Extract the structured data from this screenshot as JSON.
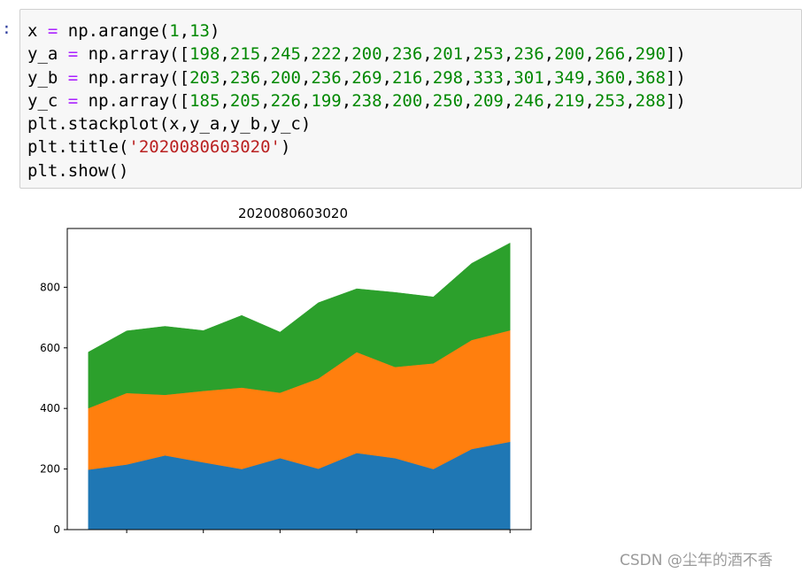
{
  "notebook": {
    "prompt": ":",
    "code_lines": [
      [
        {
          "t": "x "
        },
        {
          "t": "=",
          "c": "o"
        },
        {
          "t": " np.arange("
        },
        {
          "t": "1",
          "c": "n"
        },
        {
          "t": ","
        },
        {
          "t": "13",
          "c": "n"
        },
        {
          "t": ")"
        }
      ],
      [
        {
          "t": "y_a "
        },
        {
          "t": "=",
          "c": "o"
        },
        {
          "t": " np.array(["
        },
        {
          "t": "198",
          "c": "n"
        },
        {
          "t": ","
        },
        {
          "t": "215",
          "c": "n"
        },
        {
          "t": ","
        },
        {
          "t": "245",
          "c": "n"
        },
        {
          "t": ","
        },
        {
          "t": "222",
          "c": "n"
        },
        {
          "t": ","
        },
        {
          "t": "200",
          "c": "n"
        },
        {
          "t": ","
        },
        {
          "t": "236",
          "c": "n"
        },
        {
          "t": ","
        },
        {
          "t": "201",
          "c": "n"
        },
        {
          "t": ","
        },
        {
          "t": "253",
          "c": "n"
        },
        {
          "t": ","
        },
        {
          "t": "236",
          "c": "n"
        },
        {
          "t": ","
        },
        {
          "t": "200",
          "c": "n"
        },
        {
          "t": ","
        },
        {
          "t": "266",
          "c": "n"
        },
        {
          "t": ","
        },
        {
          "t": "290",
          "c": "n"
        },
        {
          "t": "])"
        }
      ],
      [
        {
          "t": "y_b "
        },
        {
          "t": "=",
          "c": "o"
        },
        {
          "t": " np.array(["
        },
        {
          "t": "203",
          "c": "n"
        },
        {
          "t": ","
        },
        {
          "t": "236",
          "c": "n"
        },
        {
          "t": ","
        },
        {
          "t": "200",
          "c": "n"
        },
        {
          "t": ","
        },
        {
          "t": "236",
          "c": "n"
        },
        {
          "t": ","
        },
        {
          "t": "269",
          "c": "n"
        },
        {
          "t": ","
        },
        {
          "t": "216",
          "c": "n"
        },
        {
          "t": ","
        },
        {
          "t": "298",
          "c": "n"
        },
        {
          "t": ","
        },
        {
          "t": "333",
          "c": "n"
        },
        {
          "t": ","
        },
        {
          "t": "301",
          "c": "n"
        },
        {
          "t": ","
        },
        {
          "t": "349",
          "c": "n"
        },
        {
          "t": ","
        },
        {
          "t": "360",
          "c": "n"
        },
        {
          "t": ","
        },
        {
          "t": "368",
          "c": "n"
        },
        {
          "t": "])"
        }
      ],
      [
        {
          "t": "y_c "
        },
        {
          "t": "=",
          "c": "o"
        },
        {
          "t": " np.array(["
        },
        {
          "t": "185",
          "c": "n"
        },
        {
          "t": ","
        },
        {
          "t": "205",
          "c": "n"
        },
        {
          "t": ","
        },
        {
          "t": "226",
          "c": "n"
        },
        {
          "t": ","
        },
        {
          "t": "199",
          "c": "n"
        },
        {
          "t": ","
        },
        {
          "t": "238",
          "c": "n"
        },
        {
          "t": ","
        },
        {
          "t": "200",
          "c": "n"
        },
        {
          "t": ","
        },
        {
          "t": "250",
          "c": "n"
        },
        {
          "t": ","
        },
        {
          "t": "209",
          "c": "n"
        },
        {
          "t": ","
        },
        {
          "t": "246",
          "c": "n"
        },
        {
          "t": ","
        },
        {
          "t": "219",
          "c": "n"
        },
        {
          "t": ","
        },
        {
          "t": "253",
          "c": "n"
        },
        {
          "t": ","
        },
        {
          "t": "288",
          "c": "n"
        },
        {
          "t": "])"
        }
      ],
      [
        {
          "t": "plt.stackplot(x,y_a,y_b,y_c)"
        }
      ],
      [
        {
          "t": "plt.title("
        },
        {
          "t": "'2020080603020'",
          "c": "s"
        },
        {
          "t": ")"
        }
      ],
      [
        {
          "t": "plt.show()"
        }
      ]
    ]
  },
  "chart_data": {
    "type": "area",
    "stacked": true,
    "title": "2020080603020",
    "xlabel": "",
    "ylabel": "",
    "x": [
      1,
      2,
      3,
      4,
      5,
      6,
      7,
      8,
      9,
      10,
      11,
      12
    ],
    "series": [
      {
        "values": [
          198,
          215,
          245,
          222,
          200,
          236,
          201,
          253,
          236,
          200,
          266,
          290
        ],
        "color": "#1f77b4"
      },
      {
        "values": [
          203,
          236,
          200,
          236,
          269,
          216,
          298,
          333,
          301,
          349,
          360,
          368
        ],
        "color": "#ff7f0e"
      },
      {
        "values": [
          185,
          205,
          226,
          199,
          238,
          200,
          250,
          209,
          246,
          219,
          253,
          288
        ],
        "color": "#2ca02c"
      }
    ],
    "xlim": [
      0.45,
      12.55
    ],
    "ylim": [
      0,
      994
    ],
    "xticks": [
      2,
      4,
      6,
      8,
      10,
      12
    ],
    "yticks": [
      0,
      200,
      400,
      600,
      800
    ],
    "grid": false
  },
  "watermark": "CSDN @尘年的酒不香"
}
